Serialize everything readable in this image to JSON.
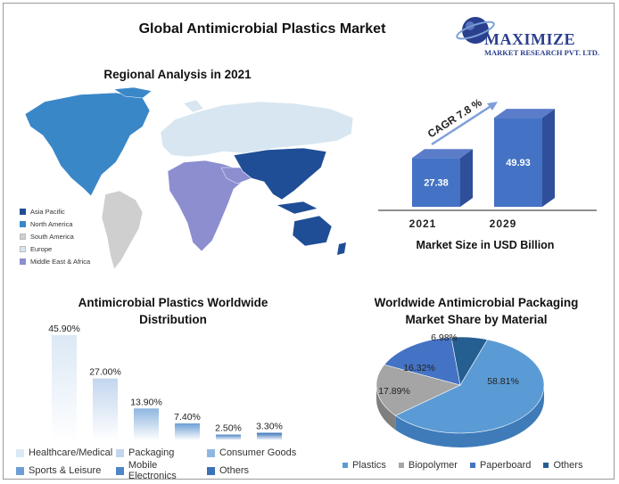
{
  "header": {
    "title": "Global Antimicrobial Plastics Market",
    "logo_text_1": "MAXIMIZE",
    "logo_text_2": "MARKET RESEARCH PVT. LTD."
  },
  "map": {
    "title": "Regional Analysis in 2021",
    "legend": [
      {
        "label": "Asia Pacific",
        "color": "#1f4e96"
      },
      {
        "label": "North America",
        "color": "#3a87c8"
      },
      {
        "label": "South America",
        "color": "#cfcfcf"
      },
      {
        "label": "Europe",
        "color": "#d7e6f0"
      },
      {
        "label": "Middle East & Africa",
        "color": "#8c8ed0"
      }
    ]
  },
  "market_size": {
    "title": "Market Size in USD Billion",
    "cagr_label": "CAGR 7.8 %",
    "years": [
      "2021",
      "2029"
    ],
    "values": [
      "27.38",
      "49.93"
    ]
  },
  "chart_data": [
    {
      "type": "bar",
      "title": "Market Size in USD Billion",
      "categories": [
        "2021",
        "2029"
      ],
      "values": [
        27.38,
        49.93
      ],
      "annotation": "CAGR 7.8 %"
    },
    {
      "type": "bar",
      "title": "Antimicrobial Plastics Worldwide Distribution",
      "categories": [
        "Healthcare/Medical",
        "Packaging",
        "Consumer Goods",
        "Sports & Leisure",
        "Mobile Electronics",
        "Others"
      ],
      "values": [
        45.9,
        27.0,
        13.9,
        7.4,
        2.5,
        3.3
      ],
      "value_labels": [
        "45.90%",
        "27.00%",
        "13.90%",
        "7.40%",
        "2.50%",
        "3.30%"
      ]
    },
    {
      "type": "pie",
      "title": "Worldwide Antimicrobial Packaging Market Share by Material",
      "categories": [
        "Plastics",
        "Biopolymer",
        "Paperboard",
        "Others"
      ],
      "values": [
        58.81,
        17.89,
        16.32,
        6.98
      ],
      "value_labels": [
        "58.81%",
        "17.89%",
        "16.32%",
        "6.98%"
      ],
      "colors": [
        "#5b9bd5",
        "#a5a5a5",
        "#4472c4",
        "#255e91"
      ]
    }
  ],
  "distribution": {
    "title_line1": "Antimicrobial Plastics Worldwide",
    "title_line2": "Distribution"
  },
  "packaging": {
    "title_line1": "Worldwide Antimicrobial Packaging",
    "title_line2": "Market Share by Material"
  }
}
